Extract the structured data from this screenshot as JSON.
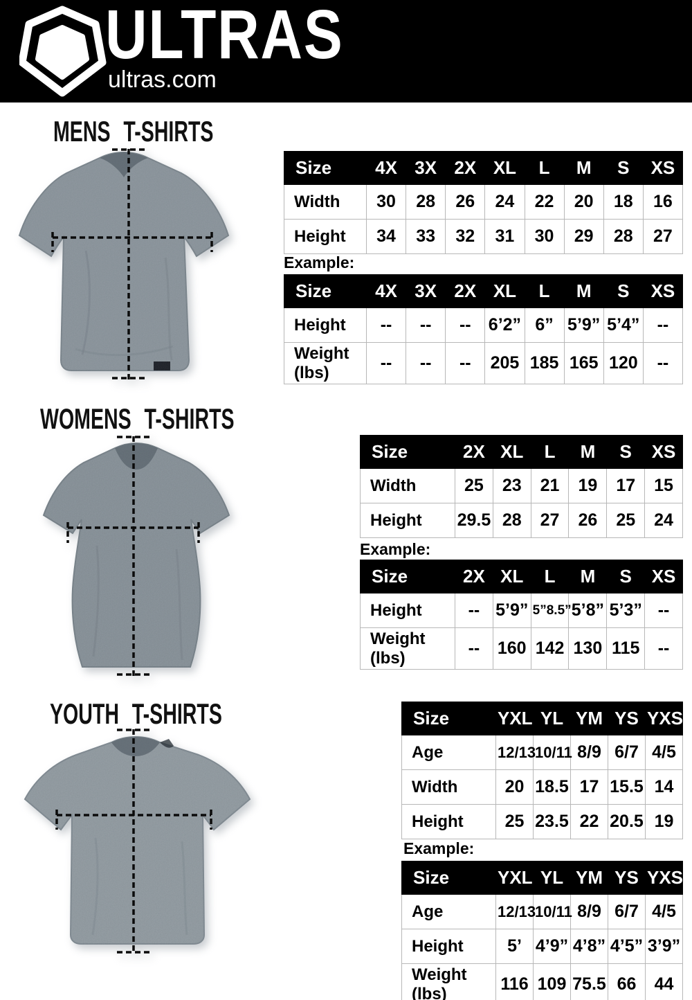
{
  "header": {
    "brand": "ULTRAS",
    "domain": "ultras.com",
    "logo_icon": "pentagon-shield-icon",
    "bg_color": "#000000"
  },
  "colors": {
    "table_header_bg": "#000000",
    "table_header_text": "#ffffff",
    "table_border": "#b7b7b7",
    "shirt_gray": "#929ca3",
    "measurement_line": "#0b0b0b",
    "page_bg": "#ffffff"
  },
  "sections": [
    {
      "title": "MENS T-SHIRTS",
      "example_label": "Example:",
      "size_table": {
        "columns": [
          "Size",
          "4X",
          "3X",
          "2X",
          "XL",
          "L",
          "M",
          "S",
          "XS"
        ],
        "rows": [
          {
            "label": "Width",
            "values": [
              "30",
              "28",
              "26",
              "24",
              "22",
              "20",
              "18",
              "16"
            ]
          },
          {
            "label": "Height",
            "values": [
              "34",
              "33",
              "32",
              "31",
              "30",
              "29",
              "28",
              "27"
            ]
          }
        ]
      },
      "example_table": {
        "columns": [
          "Size",
          "4X",
          "3X",
          "2X",
          "XL",
          "L",
          "M",
          "S",
          "XS"
        ],
        "rows": [
          {
            "label": "Height",
            "values": [
              "--",
              "--",
              "--",
              "6’2”",
              "6”",
              "5’9”",
              "5’4”",
              "--"
            ]
          },
          {
            "label": "Weight\n(lbs)",
            "values": [
              "--",
              "--",
              "--",
              "205",
              "185",
              "165",
              "120",
              "--"
            ]
          }
        ]
      }
    },
    {
      "title": "WOMENS T-SHIRTS",
      "example_label": "Example:",
      "size_table": {
        "columns": [
          "Size",
          "2X",
          "XL",
          "L",
          "M",
          "S",
          "XS"
        ],
        "rows": [
          {
            "label": "Width",
            "values": [
              "25",
              "23",
              "21",
              "19",
              "17",
              "15"
            ]
          },
          {
            "label": "Height",
            "values": [
              "29.5",
              "28",
              "27",
              "26",
              "25",
              "24"
            ]
          }
        ]
      },
      "example_table": {
        "columns": [
          "Size",
          "2X",
          "XL",
          "L",
          "M",
          "S",
          "XS"
        ],
        "rows": [
          {
            "label": "Height",
            "values": [
              "--",
              "5’9”",
              "5”8.5”",
              "5’8”",
              "5’3”",
              "--"
            ]
          },
          {
            "label": "Weight\n(lbs)",
            "values": [
              "--",
              "160",
              "142",
              "130",
              "115",
              "--"
            ]
          }
        ]
      }
    },
    {
      "title": "YOUTH T-SHIRTS",
      "example_label": "Example:",
      "size_table": {
        "columns": [
          "Size",
          "YXL",
          "YL",
          "YM",
          "YS",
          "YXS"
        ],
        "rows": [
          {
            "label": "Age",
            "values": [
              "12/13",
              "10/11",
              "8/9",
              "6/7",
              "4/5"
            ]
          },
          {
            "label": "Width",
            "values": [
              "20",
              "18.5",
              "17",
              "15.5",
              "14"
            ]
          },
          {
            "label": "Height",
            "values": [
              "25",
              "23.5",
              "22",
              "20.5",
              "19"
            ]
          }
        ]
      },
      "example_table": {
        "columns": [
          "Size",
          "YXL",
          "YL",
          "YM",
          "YS",
          "YXS"
        ],
        "rows": [
          {
            "label": "Age",
            "values": [
              "12/13",
              "10/11",
              "8/9",
              "6/7",
              "4/5"
            ]
          },
          {
            "label": "Height",
            "values": [
              "5’",
              "4’9”",
              "4’8”",
              "4’5”",
              "3’9”"
            ]
          },
          {
            "label": "Weight\n(lbs)",
            "values": [
              "116",
              "109",
              "75.5",
              "66",
              "44"
            ]
          }
        ]
      }
    }
  ]
}
